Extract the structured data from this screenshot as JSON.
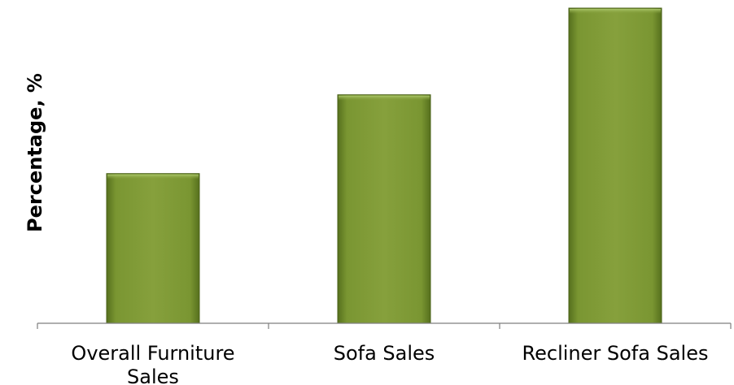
{
  "chart_data": {
    "type": "bar",
    "categories": [
      "Overall Furniture Sales",
      "Sofa Sales",
      "Recliner Sofa Sales"
    ],
    "category_lines": [
      [
        "Overall Furniture",
        "Sales"
      ],
      [
        "Sofa Sales"
      ],
      [
        "Recliner Sofa Sales"
      ]
    ],
    "values": [
      19,
      29,
      40
    ],
    "title": "",
    "xlabel": "",
    "ylabel": "Percentage, %",
    "ylim": [
      0,
      40
    ],
    "grid": false,
    "legend": "none",
    "bar_color": "#7f9a37"
  }
}
